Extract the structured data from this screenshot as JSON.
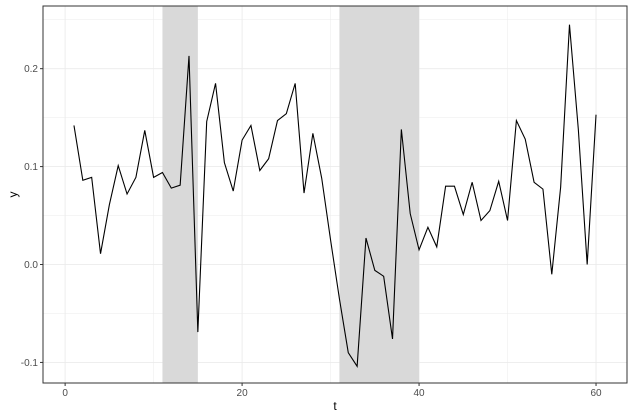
{
  "chart_data": {
    "type": "line",
    "title": "",
    "xlabel": "t",
    "ylabel": "y",
    "xlim": [
      -2.5,
      63.5
    ],
    "ylim": [
      -0.121,
      0.264
    ],
    "xticks": [
      0,
      20,
      40,
      60
    ],
    "xtick_labels": [
      "0",
      "20",
      "40",
      "60"
    ],
    "yticks": [
      -0.1,
      0.0,
      0.1,
      0.2
    ],
    "ytick_labels": [
      "-0.1",
      "0.0",
      "0.1",
      "0.2"
    ],
    "grid": true,
    "shaded_regions": [
      {
        "x_start": 11,
        "x_end": 15
      },
      {
        "x_start": 31,
        "x_end": 40
      }
    ],
    "series": [
      {
        "color": "#000000",
        "x": [
          1,
          2,
          3,
          4,
          5,
          6,
          7,
          8,
          9,
          10,
          11,
          12,
          13,
          14,
          15,
          16,
          17,
          18,
          19,
          20,
          21,
          22,
          23,
          24,
          25,
          26,
          27,
          28,
          29,
          30,
          31,
          32,
          33,
          34,
          35,
          36,
          37,
          38,
          39,
          40,
          41,
          42,
          43,
          44,
          45,
          46,
          47,
          48,
          49,
          50,
          51,
          52,
          53,
          54,
          55,
          56,
          57,
          58,
          59,
          60
        ],
        "y": [
          0.142,
          0.086,
          0.089,
          0.011,
          0.061,
          0.101,
          0.072,
          0.089,
          0.137,
          0.089,
          0.094,
          0.078,
          0.081,
          0.213,
          -0.069,
          0.146,
          0.185,
          0.104,
          0.075,
          0.127,
          0.142,
          0.096,
          0.108,
          0.147,
          0.154,
          0.185,
          0.073,
          0.134,
          0.088,
          0.025,
          -0.035,
          -0.09,
          -0.104,
          0.027,
          -0.006,
          -0.012,
          -0.076,
          0.138,
          0.052,
          0.015,
          0.038,
          0.018,
          0.08,
          0.08,
          0.051,
          0.084,
          0.045,
          0.055,
          0.085,
          0.045,
          0.147,
          0.128,
          0.084,
          0.077,
          -0.01,
          0.079,
          0.245,
          0.138,
          0.0,
          0.153
        ]
      }
    ]
  },
  "colors": {
    "shade": "#d9d9d9",
    "grid": "#ebebeb",
    "panel_border": "#333333",
    "line": "#000000"
  }
}
